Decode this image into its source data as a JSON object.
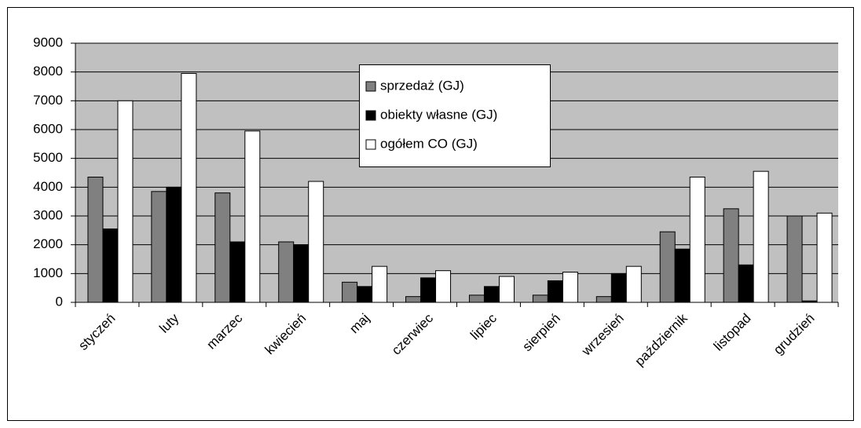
{
  "chart_data": {
    "type": "bar",
    "categories": [
      "styczeń",
      "luty",
      "marzec",
      "kwiecień",
      "maj",
      "czerwiec",
      "lipiec",
      "sierpień",
      "wrzesień",
      "październik",
      "listopad",
      "grudzień"
    ],
    "series": [
      {
        "name": "sprzedaż (GJ)",
        "color": "#808080",
        "values": [
          4350,
          3850,
          3800,
          2100,
          700,
          200,
          250,
          250,
          200,
          2450,
          3250,
          3000
        ]
      },
      {
        "name": "obiekty własne (GJ)",
        "color": "#000000",
        "values": [
          2550,
          4000,
          2100,
          2000,
          550,
          850,
          550,
          750,
          1000,
          1850,
          1300,
          50
        ]
      },
      {
        "name": "ogółem CO (GJ)",
        "color": "#ffffff",
        "values": [
          7000,
          7950,
          5950,
          4200,
          1250,
          1100,
          900,
          1050,
          1250,
          4350,
          4550,
          3100
        ]
      }
    ],
    "ylim": [
      0,
      9000
    ],
    "yticks": [
      0,
      1000,
      2000,
      3000,
      4000,
      5000,
      6000,
      7000,
      8000,
      9000
    ],
    "grid": true
  }
}
